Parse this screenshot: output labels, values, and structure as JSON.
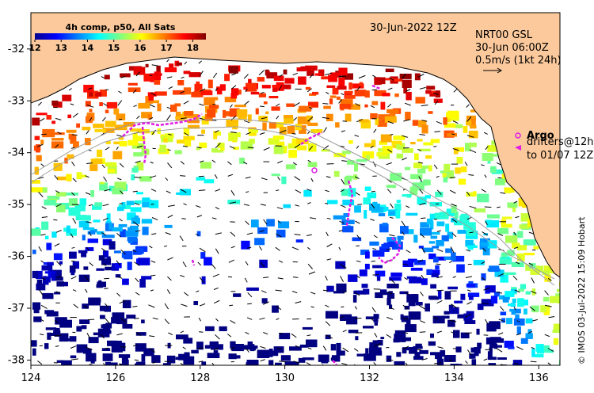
{
  "map": {
    "lon_range": [
      124,
      136.5
    ],
    "lat_range": [
      -38.1,
      -31.3
    ],
    "x_ticks": [
      124,
      126,
      128,
      130,
      132,
      134,
      136
    ],
    "x_tick_labels": [
      "124",
      "126",
      "128",
      "130",
      "132",
      "134",
      "136"
    ],
    "y_ticks": [
      -32,
      -33,
      -34,
      -35,
      -36,
      -37,
      -38
    ],
    "y_tick_labels": [
      "-32",
      "-33",
      "-34",
      "-35",
      "-36",
      "-37",
      "-38"
    ],
    "land_color": "#fbc99b",
    "coastline_color": "#000000",
    "isobath_color": "#9e9e9e",
    "argo_color": "#e11ce6"
  },
  "colorbar": {
    "title": "4h comp, p50, All Sats",
    "tick_labels": [
      "12",
      "13",
      "14",
      "15",
      "16",
      "17",
      "18"
    ],
    "range": [
      12,
      18.5
    ],
    "colormap": "jet"
  },
  "annotations": {
    "date": "30-Jun-2022 12Z",
    "product_line1": "NRT00 GSL",
    "product_line2": "30-Jun 06:00Z",
    "scale_label": "0.5m/s (1kt 24h)",
    "argo_label": "Argo",
    "drifters_line1": "drifters@12h",
    "drifters_line2": "to 01/07 12Z",
    "credit": "© IMOS 03-Jul-2022 15:09 Hobart"
  }
}
